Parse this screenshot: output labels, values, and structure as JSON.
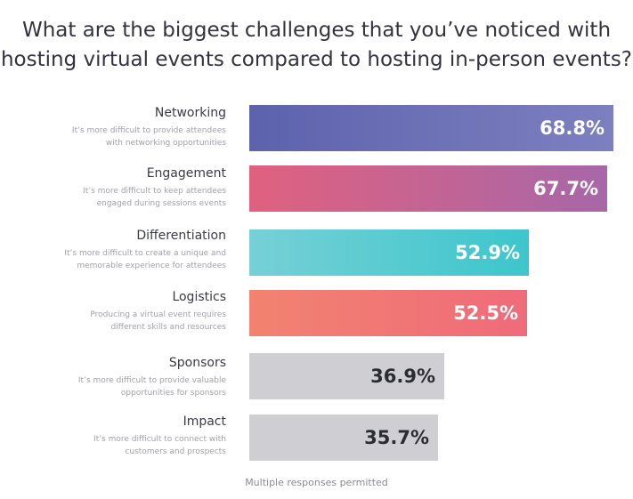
{
  "title_lines": [
    "What are the biggest challenges that you’ve noticed with",
    "hosting virtual events compared to hosting in-person events?"
  ],
  "footnote": "Multiple responses permitted",
  "chart_data": {
    "type": "bar",
    "orientation": "horizontal",
    "categories": [
      "Networking",
      "Engagement",
      "Differentiation",
      "Logistics",
      "Sponsors",
      "Impact"
    ],
    "values": [
      68.8,
      67.7,
      52.9,
      52.5,
      36.9,
      35.7
    ],
    "value_labels": [
      "68.8%",
      "67.7%",
      "52.9%",
      "52.5%",
      "36.9%",
      "35.7%"
    ],
    "descriptions": [
      [
        "It’s more difficult to provide attendees",
        "with networking opportunities"
      ],
      [
        "It’s more difficult to keep attendees",
        "engaged during sessions events"
      ],
      [
        "It’s more difficult to create a unique and",
        "memorable experience for attendees"
      ],
      [
        "Producing a virtual event requires",
        "different skills and resources"
      ],
      [
        "It’s more difficult to provide valuable",
        "opportunities for sponsors"
      ],
      [
        "It’s more difficult to connect with",
        "customers and prospects"
      ]
    ],
    "colors": [
      [
        "#5d62ad",
        "#7d80bf"
      ],
      [
        "#e0617f",
        "#a767a8"
      ],
      [
        "#76d0d6",
        "#3cc6cc"
      ],
      [
        "#f28370",
        "#ef6b7a"
      ],
      [
        "#cfcfd3",
        "#cfcfd3"
      ],
      [
        "#cfcfd3",
        "#cfcfd3"
      ]
    ],
    "value_text_colors": [
      "#ffffff",
      "#ffffff",
      "#ffffff",
      "#ffffff",
      "#2b2b33",
      "#2b2b33"
    ],
    "xlim": [
      0,
      70
    ],
    "title": "What are the biggest challenges that you’ve noticed with hosting virtual events compared to hosting in-person events?"
  }
}
